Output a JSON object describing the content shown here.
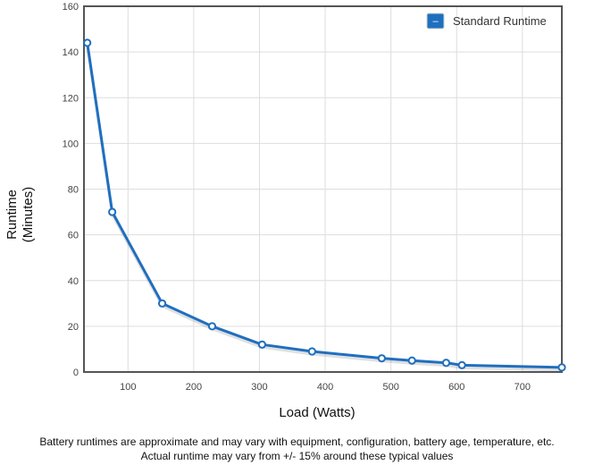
{
  "chart_data": {
    "type": "line",
    "xlabel": "Load (Watts)",
    "ylabel_lines": [
      "Runtime",
      "(Minutes)"
    ],
    "xlim": [
      33,
      760
    ],
    "ylim": [
      0,
      160
    ],
    "x_ticks": [
      100,
      200,
      300,
      400,
      500,
      600,
      700
    ],
    "y_ticks": [
      0,
      20,
      40,
      60,
      80,
      100,
      120,
      140,
      160
    ],
    "grid": true,
    "legend_position": "top-right",
    "series": [
      {
        "name": "Standard Runtime",
        "color": "#1f6fbf",
        "points": [
          {
            "x": 38,
            "y": 144
          },
          {
            "x": 76,
            "y": 70
          },
          {
            "x": 152,
            "y": 30
          },
          {
            "x": 228,
            "y": 20
          },
          {
            "x": 304,
            "y": 12
          },
          {
            "x": 380,
            "y": 9
          },
          {
            "x": 486,
            "y": 6
          },
          {
            "x": 532,
            "y": 5
          },
          {
            "x": 584,
            "y": 4
          },
          {
            "x": 608,
            "y": 3
          },
          {
            "x": 760,
            "y": 2
          }
        ]
      }
    ]
  },
  "legend": {
    "icon": "minus-icon",
    "icon_glyph": "–",
    "color": "#1f6fbf"
  },
  "footer": {
    "line1": "Battery runtimes are approximate and may vary with equipment, configuration, battery age, temperature, etc.",
    "line2": "Actual runtime may vary from +/- 15% around these typical values"
  }
}
